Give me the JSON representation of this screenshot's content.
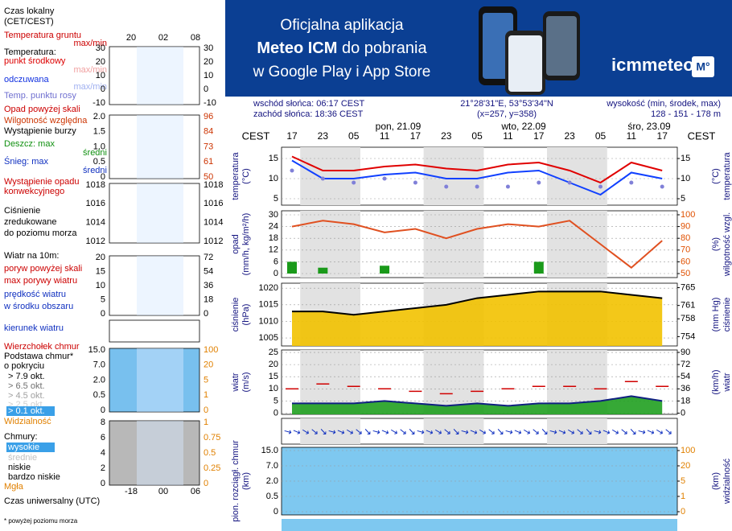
{
  "banner": {
    "line1": "Oficjalna aplikacja",
    "line2_bold": "Meteo ICM",
    "line2_rest": "do pobrania",
    "line3": "w Google Play i App Store",
    "brand": "icmmeteo",
    "badge": "M°"
  },
  "header": {
    "sunrise": "wschód słońca: 06:17 CEST",
    "sunset": "zachód słońca: 18:36 CEST",
    "coords": "21°28'31\"E, 53°53'34\"N",
    "grid": "(x=257,  y=358)",
    "elevation_label": "wysokość (min, środek, max)",
    "elevation": "128 - 151 - 178 m"
  },
  "time_axis": {
    "tz": "CEST",
    "days": [
      "pon, 21.09",
      "wto, 22.09",
      "śro, 23.09"
    ],
    "hours": [
      "17",
      "23",
      "05",
      "11",
      "17",
      "23",
      "05",
      "11",
      "17",
      "23",
      "05",
      "11",
      "17"
    ]
  },
  "legend": {
    "items": [
      {
        "text": "Czas lokalny",
        "color": "#000000"
      },
      {
        "text": "(CET/CEST)",
        "color": "#000000"
      },
      {
        "text": "Temperatura gruntu",
        "color": "#cc0000"
      },
      {
        "text": "max/min",
        "color": "#cc0000"
      },
      {
        "text": "Temperatura:",
        "color": "#000000"
      },
      {
        "text": "punkt środkowy",
        "color": "#dd0000"
      },
      {
        "text": "max/min",
        "color": "#f0a0a0"
      },
      {
        "text": "odczuwana",
        "color": "#1030e0"
      },
      {
        "text": "max/min",
        "color": "#a0b0f0"
      },
      {
        "text": "Temp. punktu rosy",
        "color": "#7070d0"
      },
      {
        "text": "Opad powyżej skali",
        "color": "#cc0000"
      },
      {
        "text": "Wilgotność względna",
        "color": "#cc3300"
      },
      {
        "text": "Wystąpienie burzy",
        "color": "#000000"
      },
      {
        "text": "Deszcz: max",
        "color": "#109010"
      },
      {
        "text": "średni",
        "color": "#109010"
      },
      {
        "text": "Śnieg: max",
        "color": "#1030c0"
      },
      {
        "text": "średni",
        "color": "#1030c0"
      },
      {
        "text": "Wystąpienie opadu",
        "color": "#cc0000"
      },
      {
        "text": "konwekcyjnego",
        "color": "#cc0000"
      },
      {
        "text": "Ciśnienie",
        "color": "#000000"
      },
      {
        "text": "zredukowane",
        "color": "#000000"
      },
      {
        "text": "do poziomu morza",
        "color": "#000000"
      },
      {
        "text": "Wiatr na 10m:",
        "color": "#000000"
      },
      {
        "text": "poryw powyżej skali",
        "color": "#cc0000"
      },
      {
        "text": "max porywy wiatru",
        "color": "#cc0000"
      },
      {
        "text": "prędkość wiatru",
        "color": "#1030c0"
      },
      {
        "text": "w środku obszaru",
        "color": "#1030c0"
      },
      {
        "text": "kierunek wiatru",
        "color": "#1030c0"
      },
      {
        "text": "Wierzchołek chmur",
        "color": "#cc0000"
      },
      {
        "text": "Podstawa chmur*",
        "color": "#000000"
      },
      {
        "text": "o pokryciu",
        "color": "#000000"
      },
      {
        "text": "> 7.9 okt.",
        "color": "#000000"
      },
      {
        "text": "> 6.5 okt.",
        "color": "#707070"
      },
      {
        "text": "> 4.5 okt.",
        "color": "#a0a0a0"
      },
      {
        "text": "> 2.5 okt.",
        "color": "#d0d0d0"
      },
      {
        "text": "> 0.1 okt.",
        "color": "#ffffff"
      },
      {
        "text": "Widzialność",
        "color": "#e08000"
      },
      {
        "text": "Chmury:",
        "color": "#000000"
      },
      {
        "text": "wysokie",
        "color": "#ffffff"
      },
      {
        "text": "średnie",
        "color": "#c0c0c0"
      },
      {
        "text": "niskie",
        "color": "#000000"
      },
      {
        "text": "bardzo niskie",
        "color": "#000000"
      },
      {
        "text": "Mgła",
        "color": "#e08000"
      },
      {
        "text": "Czas uniwersalny (UTC)",
        "color": "#000000"
      },
      {
        "text": "* powyżej poziomu morza",
        "color": "#000000"
      }
    ],
    "local_hours": [
      "20",
      "02",
      "08"
    ],
    "utc_hours": [
      "-18",
      "00",
      "06"
    ],
    "mini_axes": [
      {
        "left": [
          30,
          20,
          10,
          0,
          -10
        ],
        "right": [
          30,
          20,
          10,
          0,
          -10
        ],
        "right_color": "#000000"
      },
      {
        "left": [
          {
            "value": 2,
            "label": "2.0"
          },
          {
            "value": 1.5,
            "label": "1.5"
          },
          {
            "value": 1,
            "label": "1.0"
          },
          0.5,
          0
        ],
        "right": [
          96,
          84,
          73,
          61,
          50
        ],
        "right_color": "#cc3300"
      },
      {
        "left": [
          1018,
          1016,
          1014,
          1012
        ],
        "right": [
          1018,
          1016,
          1014,
          1012
        ],
        "right_color": "#000000"
      },
      {
        "left": [
          20,
          15,
          10,
          5,
          0
        ],
        "right": [
          72,
          54,
          36,
          18,
          0
        ],
        "right_color": "#000000"
      },
      {
        "left": [
          {
            "value": 15,
            "label": "15.0"
          },
          {
            "value": 7,
            "label": "7.0"
          },
          {
            "value": 2,
            "label": "2.0"
          },
          0.5,
          0
        ],
        "right": [
          100,
          20,
          5,
          1,
          0
        ],
        "right_color": "#e08000"
      },
      {
        "left": [
          8,
          6,
          4,
          2,
          0
        ],
        "right": [
          1,
          0.75,
          0.5,
          0.25,
          0
        ],
        "right_color": "#e08000"
      }
    ]
  },
  "chart_data": [
    {
      "type": "line",
      "ylabel": "temperatura",
      "yunit": "(°C)",
      "ylim": [
        3.4,
        17.8
      ],
      "yticks": [
        5,
        10,
        15
      ],
      "y2ticks": [
        5,
        10,
        15
      ],
      "series": [
        {
          "color": "#e00000",
          "values": [
            15.5,
            12,
            12,
            13,
            13.5,
            12.5,
            12,
            13.5,
            14,
            12,
            9,
            14,
            12
          ]
        },
        {
          "color": "#1040ff",
          "values": [
            14.5,
            10,
            10,
            11,
            11.5,
            10,
            10,
            11.5,
            12,
            9,
            6,
            11.5,
            10
          ]
        },
        {
          "color": "#8080d8",
          "dots": true,
          "values": [
            12,
            10,
            9,
            10,
            9,
            8,
            8,
            8,
            9,
            9,
            8,
            9,
            8
          ]
        }
      ]
    },
    {
      "type": "combo",
      "ylabel": "opad",
      "yunit": "(mm/h, kg/m²/h)",
      "y2label": "wilgotność wzgl.",
      "y2unit": "(%)",
      "ylim": [
        -2.05,
        32.05
      ],
      "yticks": [
        0,
        6,
        12,
        18,
        24,
        30
      ],
      "y2lim": [
        46.6,
        103.4
      ],
      "y2ticks": [
        50,
        60,
        70,
        80,
        90,
        100
      ],
      "y2color": "#e05000",
      "series": [
        {
          "kind": "bar",
          "color": "#1a9a1a",
          "values": [
            6,
            3,
            0,
            4,
            0,
            0,
            0,
            0,
            6,
            0,
            0,
            0,
            0
          ]
        },
        {
          "kind": "line",
          "axis": "y2",
          "color": "#e05020",
          "values": [
            90,
            95,
            92,
            85,
            88,
            80,
            88,
            92,
            90,
            95,
            75,
            55,
            78
          ]
        }
      ]
    },
    {
      "type": "area",
      "ylabel": "ciśnienie",
      "yunit": "(hPa)",
      "y2label": "ciśnienie",
      "y2unit": "(mm Hg)",
      "ylim": [
        1002.6,
        1021.5
      ],
      "yticks": [
        1005,
        1010,
        1015,
        1020
      ],
      "y2lim": [
        751.9,
        766.0
      ],
      "y2ticks": [
        754,
        758,
        761,
        765
      ],
      "series": [
        {
          "color": "#000000",
          "fill": "#f2c200",
          "values": [
            1013,
            1013,
            1012,
            1013,
            1014,
            1015,
            1017,
            1018,
            1019,
            1019,
            1019,
            1018,
            1017
          ]
        }
      ]
    },
    {
      "type": "combo",
      "ylabel": "wiatr",
      "yunit": "(m/s)",
      "y2label": "wiatr",
      "y2unit": "(km/h)",
      "ylim": [
        -0.5,
        26
      ],
      "yticks": [
        0,
        5,
        10,
        15,
        20,
        25
      ],
      "y2lim": [
        -1.8,
        93.6
      ],
      "y2ticks": [
        0,
        18,
        36,
        54,
        72,
        90
      ],
      "series": [
        {
          "kind": "area",
          "color": "#102080",
          "fill": "#20a020",
          "values": [
            4,
            4,
            4,
            5,
            4,
            3,
            4,
            3,
            4,
            4,
            5,
            7,
            5
          ]
        },
        {
          "kind": "dash",
          "color": "#d00000",
          "values": [
            10,
            12,
            11,
            10,
            9,
            8,
            9,
            10,
            11,
            11,
            10,
            13,
            11
          ]
        }
      ]
    },
    {
      "type": "clouds",
      "ylabel": "pion. rozciągł. chmur",
      "yunit": "(km)",
      "y2label": "widzialność",
      "y2unit": "(km)",
      "yticks": [
        {
          "value": 15,
          "label": "15.0"
        },
        {
          "value": 7,
          "label": "7.0"
        },
        {
          "value": 2,
          "label": "2.0"
        },
        0.5,
        0
      ],
      "y2ticks": [
        100,
        20,
        5,
        1,
        0
      ],
      "y2color": "#e08000"
    }
  ]
}
